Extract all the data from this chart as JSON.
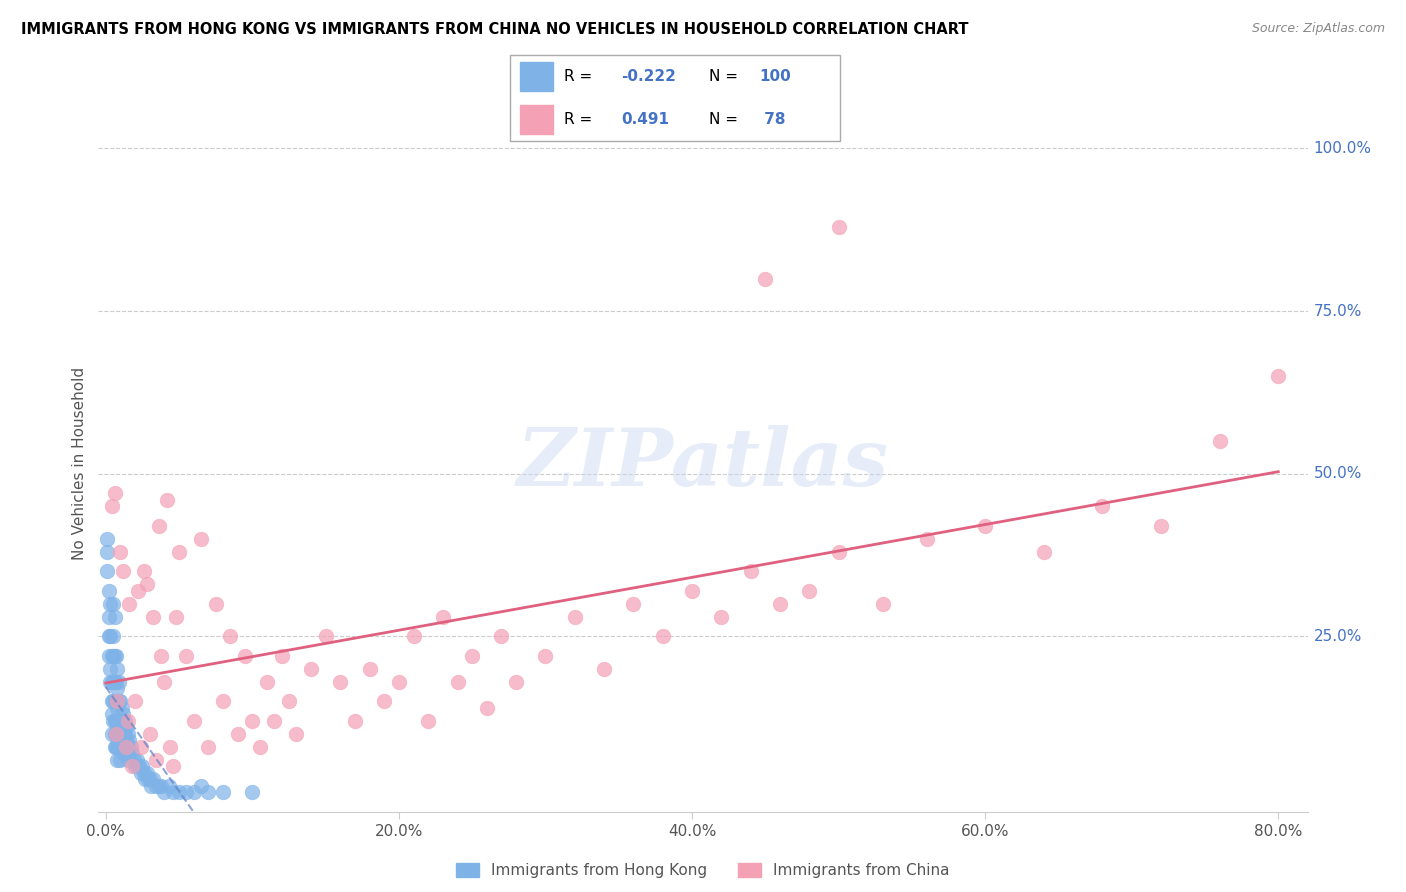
{
  "title": "IMMIGRANTS FROM HONG KONG VS IMMIGRANTS FROM CHINA NO VEHICLES IN HOUSEHOLD CORRELATION CHART",
  "source": "Source: ZipAtlas.com",
  "ylabel": "No Vehicles in Household",
  "hk_R": -0.222,
  "hk_N": 100,
  "china_R": 0.491,
  "china_N": 78,
  "hk_color": "#7fb3e8",
  "china_color": "#f4a0b5",
  "hk_line_color": "#5a82c8",
  "china_line_color": "#e06080",
  "watermark": "ZIPatlas",
  "xlim": [
    0.0,
    0.8
  ],
  "ylim": [
    0.0,
    1.0
  ],
  "hk_x": [
    0.001,
    0.001,
    0.001,
    0.002,
    0.002,
    0.002,
    0.002,
    0.003,
    0.003,
    0.003,
    0.003,
    0.004,
    0.004,
    0.004,
    0.004,
    0.004,
    0.005,
    0.005,
    0.005,
    0.005,
    0.005,
    0.005,
    0.006,
    0.006,
    0.006,
    0.006,
    0.006,
    0.006,
    0.006,
    0.007,
    0.007,
    0.007,
    0.007,
    0.007,
    0.007,
    0.008,
    0.008,
    0.008,
    0.008,
    0.008,
    0.008,
    0.008,
    0.009,
    0.009,
    0.009,
    0.009,
    0.009,
    0.01,
    0.01,
    0.01,
    0.01,
    0.01,
    0.011,
    0.011,
    0.011,
    0.011,
    0.012,
    0.012,
    0.012,
    0.012,
    0.013,
    0.013,
    0.013,
    0.014,
    0.014,
    0.014,
    0.015,
    0.015,
    0.015,
    0.016,
    0.016,
    0.017,
    0.018,
    0.019,
    0.02,
    0.021,
    0.022,
    0.023,
    0.024,
    0.025,
    0.026,
    0.027,
    0.028,
    0.029,
    0.03,
    0.031,
    0.032,
    0.034,
    0.036,
    0.038,
    0.04,
    0.043,
    0.046,
    0.05,
    0.055,
    0.06,
    0.065,
    0.07,
    0.08,
    0.1
  ],
  "hk_y": [
    0.35,
    0.38,
    0.4,
    0.32,
    0.28,
    0.25,
    0.22,
    0.3,
    0.25,
    0.2,
    0.18,
    0.22,
    0.18,
    0.15,
    0.13,
    0.1,
    0.3,
    0.25,
    0.22,
    0.18,
    0.15,
    0.12,
    0.28,
    0.22,
    0.18,
    0.15,
    0.12,
    0.1,
    0.08,
    0.22,
    0.18,
    0.15,
    0.12,
    0.1,
    0.08,
    0.2,
    0.17,
    0.14,
    0.12,
    0.1,
    0.08,
    0.06,
    0.18,
    0.15,
    0.12,
    0.1,
    0.08,
    0.15,
    0.12,
    0.1,
    0.08,
    0.06,
    0.14,
    0.12,
    0.1,
    0.08,
    0.13,
    0.11,
    0.09,
    0.07,
    0.12,
    0.1,
    0.08,
    0.11,
    0.09,
    0.07,
    0.1,
    0.08,
    0.06,
    0.09,
    0.07,
    0.08,
    0.07,
    0.06,
    0.05,
    0.06,
    0.05,
    0.05,
    0.04,
    0.05,
    0.04,
    0.03,
    0.04,
    0.03,
    0.03,
    0.02,
    0.03,
    0.02,
    0.02,
    0.02,
    0.01,
    0.02,
    0.01,
    0.01,
    0.01,
    0.01,
    0.02,
    0.01,
    0.01,
    0.01
  ],
  "china_x": [
    0.004,
    0.006,
    0.007,
    0.008,
    0.01,
    0.012,
    0.014,
    0.015,
    0.016,
    0.018,
    0.02,
    0.022,
    0.024,
    0.026,
    0.028,
    0.03,
    0.032,
    0.034,
    0.036,
    0.038,
    0.04,
    0.042,
    0.044,
    0.046,
    0.048,
    0.05,
    0.055,
    0.06,
    0.065,
    0.07,
    0.075,
    0.08,
    0.085,
    0.09,
    0.095,
    0.1,
    0.105,
    0.11,
    0.115,
    0.12,
    0.125,
    0.13,
    0.14,
    0.15,
    0.16,
    0.17,
    0.18,
    0.19,
    0.2,
    0.21,
    0.22,
    0.23,
    0.24,
    0.25,
    0.26,
    0.27,
    0.28,
    0.3,
    0.32,
    0.34,
    0.36,
    0.38,
    0.4,
    0.42,
    0.44,
    0.46,
    0.48,
    0.5,
    0.53,
    0.56,
    0.6,
    0.64,
    0.68,
    0.72,
    0.76,
    0.8,
    0.5,
    0.45
  ],
  "china_y": [
    0.45,
    0.47,
    0.1,
    0.15,
    0.38,
    0.35,
    0.08,
    0.12,
    0.3,
    0.05,
    0.15,
    0.32,
    0.08,
    0.35,
    0.33,
    0.1,
    0.28,
    0.06,
    0.42,
    0.22,
    0.18,
    0.46,
    0.08,
    0.05,
    0.28,
    0.38,
    0.22,
    0.12,
    0.4,
    0.08,
    0.3,
    0.15,
    0.25,
    0.1,
    0.22,
    0.12,
    0.08,
    0.18,
    0.12,
    0.22,
    0.15,
    0.1,
    0.2,
    0.25,
    0.18,
    0.12,
    0.2,
    0.15,
    0.18,
    0.25,
    0.12,
    0.28,
    0.18,
    0.22,
    0.14,
    0.25,
    0.18,
    0.22,
    0.28,
    0.2,
    0.3,
    0.25,
    0.32,
    0.28,
    0.35,
    0.3,
    0.32,
    0.38,
    0.3,
    0.4,
    0.42,
    0.38,
    0.45,
    0.42,
    0.55,
    0.65,
    0.88,
    0.8
  ]
}
